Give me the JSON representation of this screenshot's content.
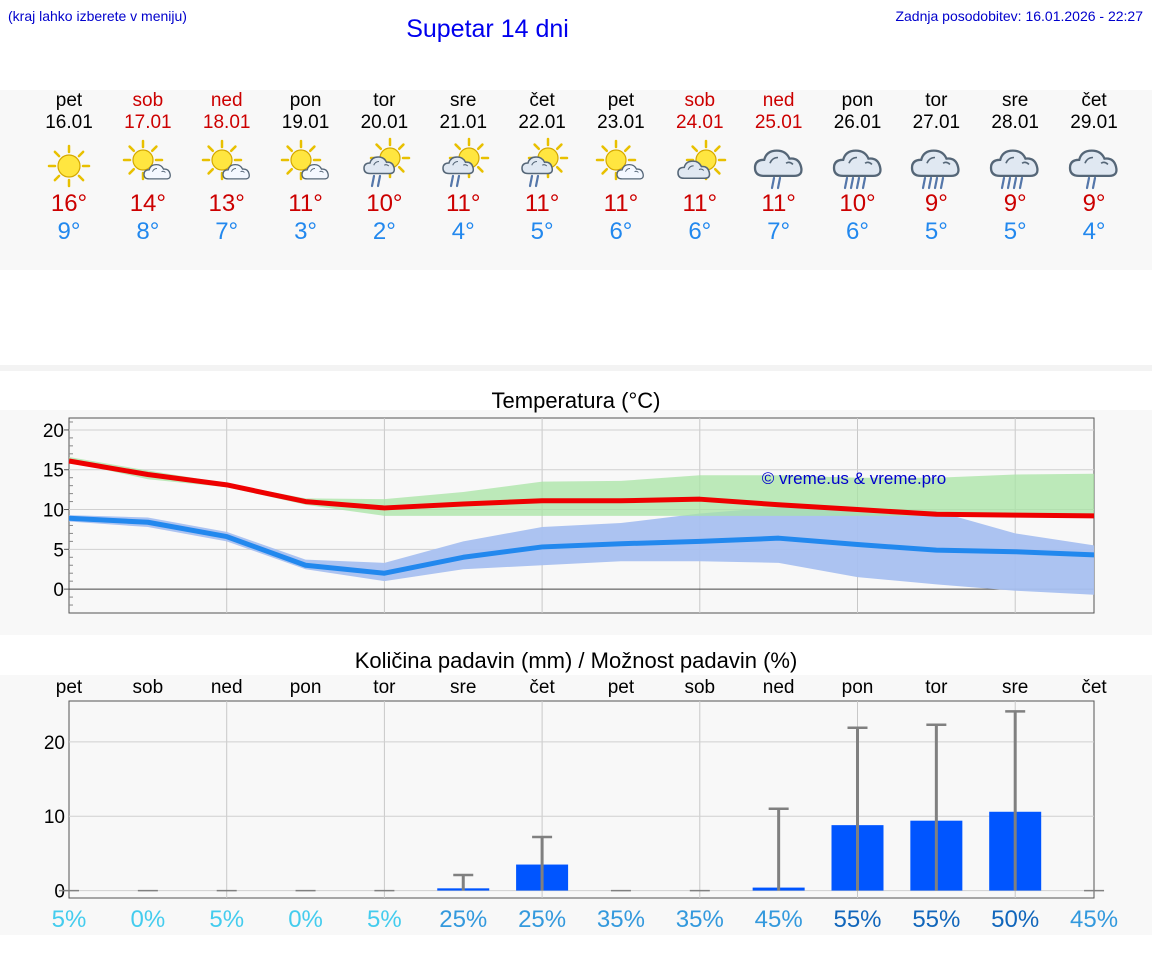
{
  "header": {
    "hint": "(kraj lahko izberete v meniju)",
    "title": "Supetar 14 dni",
    "updated": "Zadnja posodobitev: 16.01.2026 - 22:27"
  },
  "days": [
    {
      "name": "pet",
      "date": "16.01",
      "icon": "sun-icon",
      "tmax": "16°",
      "tmin": "9°",
      "weekend": false
    },
    {
      "name": "sob",
      "date": "17.01",
      "icon": "sun-cloud-icon",
      "tmax": "14°",
      "tmin": "8°",
      "weekend": true
    },
    {
      "name": "ned",
      "date": "18.01",
      "icon": "sun-cloud-icon",
      "tmax": "13°",
      "tmin": "7°",
      "weekend": true
    },
    {
      "name": "pon",
      "date": "19.01",
      "icon": "sun-cloud-icon",
      "tmax": "11°",
      "tmin": "3°",
      "weekend": false
    },
    {
      "name": "tor",
      "date": "20.01",
      "icon": "sun-rain-icon",
      "tmax": "10°",
      "tmin": "2°",
      "weekend": false
    },
    {
      "name": "sre",
      "date": "21.01",
      "icon": "sun-rain-icon",
      "tmax": "11°",
      "tmin": "4°",
      "weekend": false
    },
    {
      "name": "čet",
      "date": "22.01",
      "icon": "sun-rain-icon",
      "tmax": "11°",
      "tmin": "5°",
      "weekend": false
    },
    {
      "name": "pet",
      "date": "23.01",
      "icon": "sun-cloud-icon",
      "tmax": "11°",
      "tmin": "6°",
      "weekend": false
    },
    {
      "name": "sob",
      "date": "24.01",
      "icon": "cloud-sun-icon",
      "tmax": "11°",
      "tmin": "6°",
      "weekend": true
    },
    {
      "name": "ned",
      "date": "25.01",
      "icon": "cloud-rain-icon",
      "tmax": "11°",
      "tmin": "7°",
      "weekend": true
    },
    {
      "name": "pon",
      "date": "26.01",
      "icon": "cloud-heavy-rain-icon",
      "tmax": "10°",
      "tmin": "6°",
      "weekend": false
    },
    {
      "name": "tor",
      "date": "27.01",
      "icon": "cloud-heavy-rain-icon",
      "tmax": "9°",
      "tmin": "5°",
      "weekend": false
    },
    {
      "name": "sre",
      "date": "28.01",
      "icon": "cloud-heavy-rain-icon",
      "tmax": "9°",
      "tmin": "5°",
      "weekend": false
    },
    {
      "name": "čet",
      "date": "29.01",
      "icon": "cloud-rain-icon",
      "tmax": "9°",
      "tmin": "4°",
      "weekend": false
    }
  ],
  "colors": {
    "max": "#ee0000",
    "min": "#2288ee",
    "maxBand": "#a8e4a4",
    "minBand": "#a8c0f0",
    "overlap": "#78c0a0",
    "bar": "#0055ff",
    "whisker": "#808080",
    "copyright": "#0000cc"
  },
  "chart_data": [
    {
      "type": "line",
      "title": "Temperatura (°C)",
      "x": [
        0,
        1,
        2,
        3,
        4,
        5,
        6,
        7,
        8,
        9,
        10,
        11,
        12,
        13
      ],
      "ylim": [
        -3,
        21.5
      ],
      "yticks": [
        0,
        5,
        10,
        15,
        20
      ],
      "copyright": "© vreme.us & vreme.pro",
      "series": [
        {
          "name": "max",
          "values": [
            16.1,
            14.4,
            13.1,
            11.0,
            10.2,
            10.7,
            11.1,
            11.1,
            11.3,
            10.6,
            10.0,
            9.4,
            9.3,
            9.2
          ]
        },
        {
          "name": "min",
          "values": [
            8.9,
            8.4,
            6.6,
            3.0,
            2.0,
            4.0,
            5.3,
            5.7,
            6.0,
            6.4,
            5.6,
            4.9,
            4.7,
            4.3
          ]
        }
      ],
      "bands": [
        {
          "name": "max-range",
          "low": [
            16.0,
            13.8,
            12.8,
            10.6,
            9.2,
            9.2,
            9.2,
            9.2,
            9.2,
            9.2,
            9.2,
            9.2,
            9.2,
            9.2
          ],
          "high": [
            16.6,
            14.9,
            13.3,
            11.4,
            11.3,
            12.2,
            13.5,
            13.6,
            14.3,
            14.3,
            14.0,
            14.0,
            14.4,
            14.5
          ]
        },
        {
          "name": "min-range",
          "low": [
            8.5,
            7.8,
            6.0,
            2.5,
            1.0,
            2.5,
            3.0,
            3.5,
            3.5,
            3.3,
            1.5,
            0.6,
            -0.2,
            -0.7
          ],
          "high": [
            9.3,
            9.0,
            7.2,
            3.7,
            3.3,
            6.0,
            7.8,
            8.3,
            9.5,
            10.3,
            10.1,
            9.8,
            7.0,
            5.5
          ]
        }
      ]
    },
    {
      "type": "bar",
      "title": "Količina padavin (mm) / Možnost padavin (%)",
      "categories": [
        "pet",
        "sob",
        "ned",
        "pon",
        "tor",
        "sre",
        "čet",
        "pet",
        "sob",
        "ned",
        "pon",
        "tor",
        "sre",
        "čet"
      ],
      "values": [
        0,
        0,
        0,
        0,
        0,
        0.3,
        3.5,
        0,
        0,
        0.4,
        8.8,
        9.4,
        10.6,
        0
      ],
      "whiskers": [
        0,
        0,
        0,
        0,
        0,
        2.1,
        7.2,
        0,
        0,
        11.0,
        21.9,
        22.3,
        24.1,
        0
      ],
      "probability": [
        "5%",
        "0%",
        "5%",
        "0%",
        "5%",
        "25%",
        "25%",
        "35%",
        "35%",
        "45%",
        "55%",
        "55%",
        "50%",
        "45%"
      ],
      "probability_colors": [
        "#44ccee",
        "#44ccee",
        "#44ccee",
        "#44ccee",
        "#44ccee",
        "#3399dd",
        "#3399dd",
        "#3399dd",
        "#3399dd",
        "#3399dd",
        "#1166bb",
        "#1166bb",
        "#1166bb",
        "#3399dd"
      ],
      "ylim": [
        -1,
        25.5
      ],
      "yticks": [
        0,
        10,
        20
      ]
    }
  ]
}
